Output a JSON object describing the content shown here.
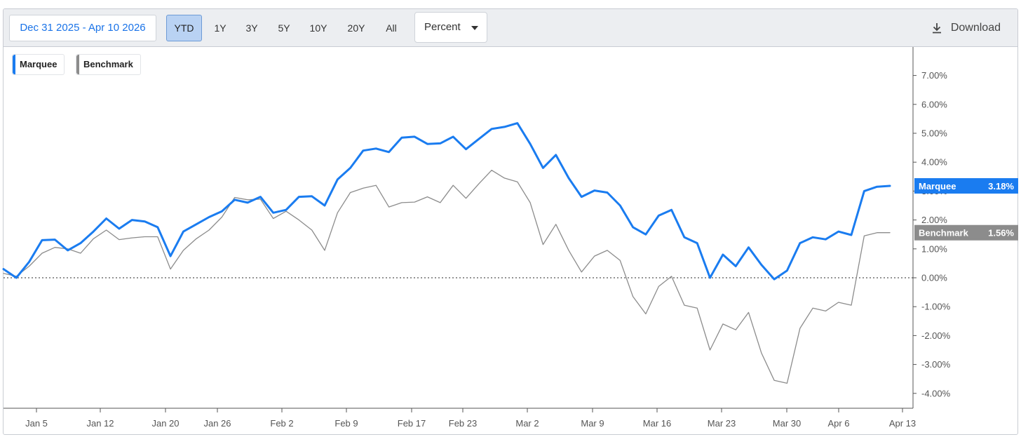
{
  "toolbar": {
    "date_range": "Dec 31 2025 - Apr 10 2026",
    "periods": [
      "YTD",
      "1Y",
      "3Y",
      "5Y",
      "10Y",
      "20Y",
      "All"
    ],
    "active_period": "YTD",
    "mode": "Percent",
    "download_label": "Download"
  },
  "legend": [
    {
      "name": "Marquee",
      "color": "#1a7cf0"
    },
    {
      "name": "Benchmark",
      "color": "#8c8c8c"
    }
  ],
  "chart_data": {
    "type": "line",
    "xlabel": "",
    "ylabel": "",
    "x_tick_labels": [
      "Jan 5",
      "Jan 12",
      "Jan 20",
      "Jan 26",
      "Feb 2",
      "Feb 9",
      "Feb 17",
      "Feb 23",
      "Mar 2",
      "Mar 9",
      "Mar 16",
      "Mar 23",
      "Mar 30",
      "Apr 6",
      "Apr 13"
    ],
    "y_tick_labels": [
      "-4.00%",
      "-3.00%",
      "-2.00%",
      "-1.00%",
      "0.00%",
      "1.00%",
      "2.00%",
      "3.00%",
      "4.00%",
      "5.00%",
      "6.00%",
      "7.00%"
    ],
    "ylim": [
      -4.3,
      8.0
    ],
    "y_axis_position": "right",
    "baseline": 0,
    "series": [
      {
        "name": "Marquee",
        "color": "#1a7cf0",
        "last_value_label": "3.18%",
        "values": [
          0.3,
          0.0,
          0.55,
          1.3,
          1.32,
          0.95,
          1.2,
          1.6,
          2.05,
          1.7,
          2.0,
          1.95,
          1.75,
          0.75,
          1.6,
          1.85,
          2.1,
          2.3,
          2.7,
          2.6,
          2.8,
          2.25,
          2.35,
          2.8,
          2.82,
          2.5,
          3.4,
          3.8,
          4.4,
          4.47,
          4.35,
          4.85,
          4.88,
          4.63,
          4.65,
          4.88,
          4.45,
          4.8,
          5.15,
          5.22,
          5.35,
          4.63,
          3.8,
          4.25,
          3.45,
          2.8,
          3.02,
          2.95,
          2.5,
          1.75,
          1.5,
          2.15,
          2.35,
          1.4,
          1.2,
          0.0,
          0.8,
          0.4,
          1.05,
          0.45,
          -0.05,
          0.25,
          1.2,
          1.4,
          1.33,
          1.6,
          1.48,
          3.0,
          3.15,
          3.18
        ]
      },
      {
        "name": "Benchmark",
        "color": "#8c8c8c",
        "last_value_label": "1.56%",
        "values": [
          0.15,
          0.05,
          0.4,
          0.85,
          1.05,
          1.0,
          0.85,
          1.35,
          1.65,
          1.32,
          1.38,
          1.42,
          1.42,
          0.3,
          0.95,
          1.35,
          1.65,
          2.1,
          2.78,
          2.7,
          2.72,
          2.05,
          2.3,
          2.0,
          1.65,
          0.95,
          2.25,
          2.95,
          3.1,
          3.2,
          2.45,
          2.6,
          2.62,
          2.8,
          2.6,
          3.2,
          2.75,
          3.25,
          3.72,
          3.45,
          3.32,
          2.6,
          1.15,
          1.85,
          0.95,
          0.2,
          0.75,
          0.95,
          0.6,
          -0.65,
          -1.25,
          -0.3,
          0.05,
          -0.95,
          -1.05,
          -2.5,
          -1.6,
          -1.8,
          -1.2,
          -2.6,
          -3.55,
          -3.65,
          -1.75,
          -1.05,
          -1.15,
          -0.85,
          -0.95,
          1.45,
          1.56,
          1.56
        ]
      }
    ]
  }
}
